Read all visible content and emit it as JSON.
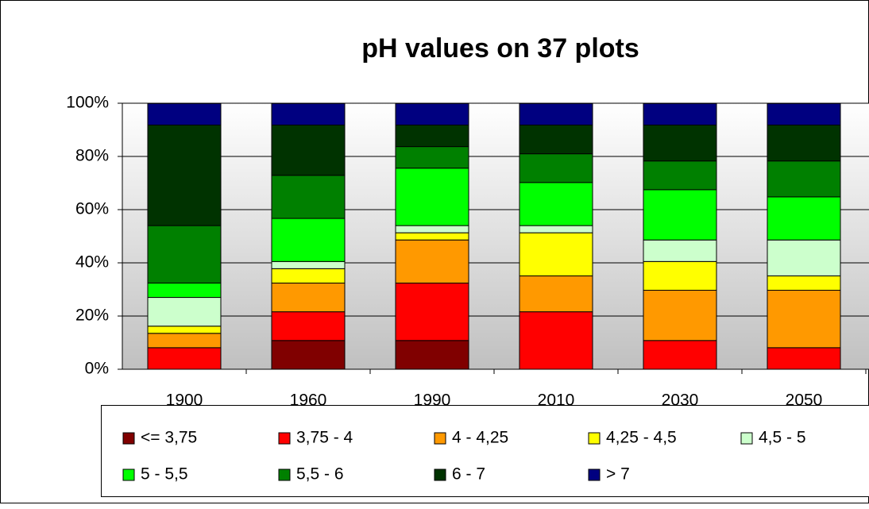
{
  "chart_data": {
    "type": "stacked_bar",
    "title": "pH values on 37 plots",
    "categories": [
      "1900",
      "1960",
      "1990",
      "2010",
      "2030",
      "2050"
    ],
    "series": [
      {
        "name": "<= 3,75",
        "color": "#800000",
        "values": [
          0,
          10.8,
          10.8,
          0,
          0,
          0
        ]
      },
      {
        "name": "3,75 - 4",
        "color": "#ff0000",
        "values": [
          8.1,
          10.8,
          21.6,
          21.6,
          10.8,
          8.1
        ]
      },
      {
        "name": "4 - 4,25",
        "color": "#ff9900",
        "values": [
          5.4,
          10.8,
          16.2,
          13.5,
          18.9,
          21.6
        ]
      },
      {
        "name": "4,25 - 4,5",
        "color": "#ffff00",
        "values": [
          2.7,
          5.4,
          2.7,
          16.2,
          10.8,
          5.4
        ]
      },
      {
        "name": "4,5 - 5",
        "color": "#ccffcc",
        "values": [
          10.8,
          2.7,
          2.7,
          2.7,
          8.1,
          13.5
        ]
      },
      {
        "name": "5 - 5,5",
        "color": "#00ff00",
        "values": [
          5.4,
          16.2,
          21.6,
          16.2,
          18.9,
          16.2
        ]
      },
      {
        "name": "5,5 - 6",
        "color": "#008000",
        "values": [
          21.6,
          16.2,
          8.1,
          10.8,
          10.8,
          13.5
        ]
      },
      {
        "name": "6 - 7",
        "color": "#003300",
        "values": [
          37.8,
          18.9,
          8.1,
          10.8,
          13.5,
          13.5
        ]
      },
      {
        "name": "> 7",
        "color": "#000080",
        "values": [
          8.1,
          8.1,
          8.1,
          8.1,
          8.1,
          8.1
        ]
      }
    ],
    "ylim": [
      0,
      100
    ],
    "yticks": [
      {
        "value": 0,
        "label": "0%"
      },
      {
        "value": 20,
        "label": "20%"
      },
      {
        "value": 40,
        "label": "40%"
      },
      {
        "value": 60,
        "label": "60%"
      },
      {
        "value": 80,
        "label": "80%"
      },
      {
        "value": 100,
        "label": "100%"
      }
    ],
    "grid": true,
    "legend": "bottom"
  }
}
